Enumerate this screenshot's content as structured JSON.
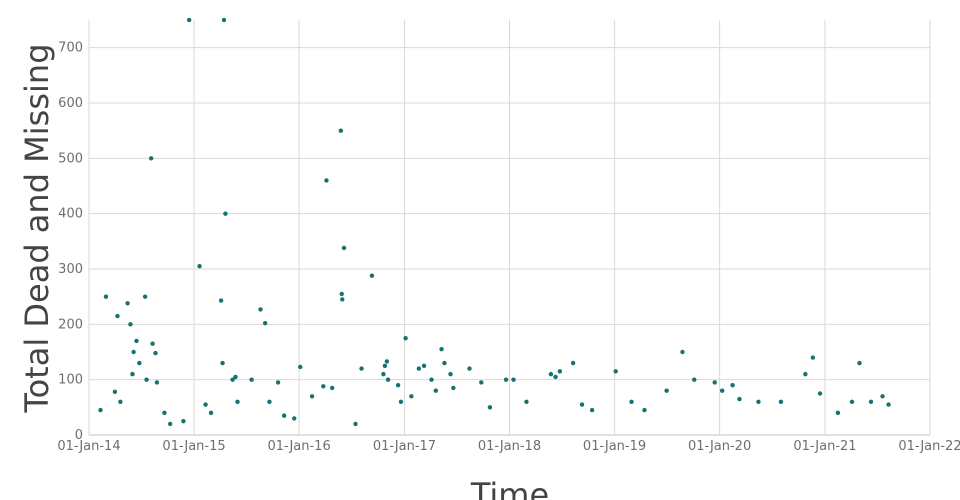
{
  "chart_data": {
    "type": "scatter",
    "title": "",
    "xlabel": "Time",
    "ylabel": "Total Dead and Missing",
    "x_ticks": [
      "01-Jan-14",
      "01-Jan-15",
      "01-Jan-16",
      "01-Jan-17",
      "01-Jan-18",
      "01-Jan-19",
      "01-Jan-20",
      "01-Jan-21",
      "01-Jan-22"
    ],
    "x_range": [
      "2014-01-01",
      "2022-01-01"
    ],
    "y_ticks": [
      0,
      100,
      200,
      300,
      400,
      500,
      600,
      700
    ],
    "ylim": [
      0,
      750
    ],
    "grid": true,
    "marker_color": "#147272",
    "series": [
      {
        "name": "",
        "points": [
          {
            "x": "2014-03-01",
            "y": 250
          },
          {
            "x": "2014-04-10",
            "y": 215
          },
          {
            "x": "2014-05-15",
            "y": 238
          },
          {
            "x": "2014-05-25",
            "y": 200
          },
          {
            "x": "2014-06-05",
            "y": 150
          },
          {
            "x": "2014-06-15",
            "y": 170
          },
          {
            "x": "2014-06-25",
            "y": 130
          },
          {
            "x": "2014-07-15",
            "y": 250
          },
          {
            "x": "2014-08-05",
            "y": 500
          },
          {
            "x": "2014-08-10",
            "y": 165
          },
          {
            "x": "2014-08-20",
            "y": 148
          },
          {
            "x": "2014-07-20",
            "y": 100
          },
          {
            "x": "2014-08-25",
            "y": 95
          },
          {
            "x": "2014-04-01",
            "y": 78
          },
          {
            "x": "2014-04-20",
            "y": 60
          },
          {
            "x": "2014-06-01",
            "y": 110
          },
          {
            "x": "2014-02-10",
            "y": 45
          },
          {
            "x": "2014-09-20",
            "y": 40
          },
          {
            "x": "2014-10-10",
            "y": 20
          },
          {
            "x": "2014-11-25",
            "y": 25
          },
          {
            "x": "2014-12-15",
            "y": 750
          },
          {
            "x": "2015-01-20",
            "y": 305
          },
          {
            "x": "2015-04-15",
            "y": 750
          },
          {
            "x": "2015-04-20",
            "y": 400
          },
          {
            "x": "2015-04-05",
            "y": 243
          },
          {
            "x": "2015-04-10",
            "y": 130
          },
          {
            "x": "2015-05-15",
            "y": 100
          },
          {
            "x": "2015-05-25",
            "y": 105
          },
          {
            "x": "2015-06-01",
            "y": 60
          },
          {
            "x": "2015-07-20",
            "y": 100
          },
          {
            "x": "2015-08-20",
            "y": 227
          },
          {
            "x": "2015-09-05",
            "y": 202
          },
          {
            "x": "2015-09-20",
            "y": 60
          },
          {
            "x": "2015-10-20",
            "y": 95
          },
          {
            "x": "2015-02-10",
            "y": 55
          },
          {
            "x": "2015-03-01",
            "y": 40
          },
          {
            "x": "2015-11-10",
            "y": 35
          },
          {
            "x": "2015-12-15",
            "y": 30
          },
          {
            "x": "2016-01-05",
            "y": 123
          },
          {
            "x": "2016-02-15",
            "y": 70
          },
          {
            "x": "2016-03-25",
            "y": 88
          },
          {
            "x": "2016-04-05",
            "y": 460
          },
          {
            "x": "2016-04-25",
            "y": 85
          },
          {
            "x": "2016-05-25",
            "y": 550
          },
          {
            "x": "2016-05-28",
            "y": 255
          },
          {
            "x": "2016-05-30",
            "y": 245
          },
          {
            "x": "2016-06-05",
            "y": 338
          },
          {
            "x": "2016-08-05",
            "y": 120
          },
          {
            "x": "2016-09-10",
            "y": 288
          },
          {
            "x": "2016-07-15",
            "y": 20
          },
          {
            "x": "2016-10-20",
            "y": 110
          },
          {
            "x": "2016-10-25",
            "y": 125
          },
          {
            "x": "2016-11-01",
            "y": 133
          },
          {
            "x": "2016-11-05",
            "y": 100
          },
          {
            "x": "2016-12-10",
            "y": 90
          },
          {
            "x": "2016-12-20",
            "y": 60
          },
          {
            "x": "2017-01-05",
            "y": 175
          },
          {
            "x": "2017-01-25",
            "y": 70
          },
          {
            "x": "2017-02-20",
            "y": 120
          },
          {
            "x": "2017-03-10",
            "y": 125
          },
          {
            "x": "2017-04-05",
            "y": 100
          },
          {
            "x": "2017-04-20",
            "y": 80
          },
          {
            "x": "2017-05-10",
            "y": 155
          },
          {
            "x": "2017-05-20",
            "y": 130
          },
          {
            "x": "2017-06-10",
            "y": 110
          },
          {
            "x": "2017-06-20",
            "y": 85
          },
          {
            "x": "2017-08-15",
            "y": 120
          },
          {
            "x": "2017-09-25",
            "y": 95
          },
          {
            "x": "2017-10-25",
            "y": 50
          },
          {
            "x": "2017-12-20",
            "y": 100
          },
          {
            "x": "2018-01-15",
            "y": 100
          },
          {
            "x": "2018-03-01",
            "y": 60
          },
          {
            "x": "2018-05-25",
            "y": 110
          },
          {
            "x": "2018-06-10",
            "y": 105
          },
          {
            "x": "2018-06-25",
            "y": 115
          },
          {
            "x": "2018-08-10",
            "y": 130
          },
          {
            "x": "2018-09-10",
            "y": 55
          },
          {
            "x": "2018-10-15",
            "y": 45
          },
          {
            "x": "2019-01-05",
            "y": 115
          },
          {
            "x": "2019-03-01",
            "y": 60
          },
          {
            "x": "2019-04-15",
            "y": 45
          },
          {
            "x": "2019-07-01",
            "y": 80
          },
          {
            "x": "2019-08-25",
            "y": 150
          },
          {
            "x": "2019-10-05",
            "y": 100
          },
          {
            "x": "2019-12-15",
            "y": 95
          },
          {
            "x": "2020-01-10",
            "y": 80
          },
          {
            "x": "2020-02-15",
            "y": 90
          },
          {
            "x": "2020-03-10",
            "y": 65
          },
          {
            "x": "2020-05-15",
            "y": 60
          },
          {
            "x": "2020-08-01",
            "y": 60
          },
          {
            "x": "2020-10-25",
            "y": 110
          },
          {
            "x": "2020-11-20",
            "y": 140
          },
          {
            "x": "2020-12-15",
            "y": 75
          },
          {
            "x": "2021-02-15",
            "y": 40
          },
          {
            "x": "2021-04-05",
            "y": 60
          },
          {
            "x": "2021-05-01",
            "y": 130
          },
          {
            "x": "2021-06-10",
            "y": 60
          },
          {
            "x": "2021-07-20",
            "y": 70
          },
          {
            "x": "2021-08-10",
            "y": 55
          }
        ]
      }
    ]
  }
}
